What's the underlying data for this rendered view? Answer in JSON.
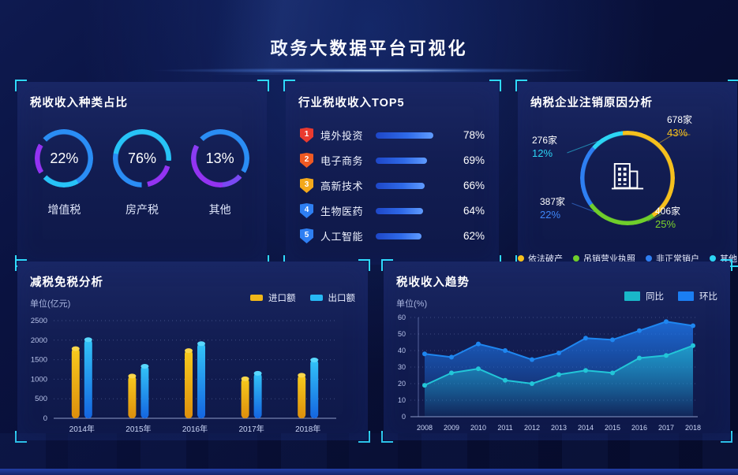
{
  "header": {
    "title": "政务大数据平台可视化"
  },
  "colors": {
    "background": "#070d30",
    "panel": "#121d4f",
    "corner_bracket": "#2fd9fd",
    "bar_blue": "#2f6ae8"
  },
  "panels": {
    "tax_type": {
      "title": "税收收入种类占比",
      "gauges": [
        {
          "value": "22%",
          "label": "增值税"
        },
        {
          "value": "76%",
          "label": "房产税"
        },
        {
          "value": "13%",
          "label": "其他"
        }
      ]
    },
    "industry_top5": {
      "title": "行业税收收入TOP5",
      "rows": [
        {
          "rank": "1",
          "label": "境外投资",
          "pct": "78%",
          "value": 78,
          "badge_color": "#e93a2f"
        },
        {
          "rank": "2",
          "label": "电子商务",
          "pct": "69%",
          "value": 69,
          "badge_color": "#ef5a23"
        },
        {
          "rank": "3",
          "label": "高新技术",
          "pct": "66%",
          "value": 66,
          "badge_color": "#f3a81b"
        },
        {
          "rank": "4",
          "label": "生物医药",
          "pct": "64%",
          "value": 64,
          "badge_color": "#2e7ff2"
        },
        {
          "rank": "5",
          "label": "人工智能",
          "pct": "62%",
          "value": 62,
          "badge_color": "#2e7ff2"
        }
      ]
    },
    "cancellation": {
      "title": "纳税企业注销原因分析",
      "callouts": [
        {
          "count": "678家",
          "pct": "43%",
          "color": "#f5c01d"
        },
        {
          "count": "276家",
          "pct": "12%",
          "color": "#2cd5f4"
        },
        {
          "count": "387家",
          "pct": "22%",
          "color": "#3f86f7"
        },
        {
          "count": "406家",
          "pct": "25%",
          "color": "#7ed32a"
        }
      ],
      "legend": [
        {
          "label": "依法破产",
          "color": "#f5c01d"
        },
        {
          "label": "吊销营业执照",
          "color": "#6fce2b"
        },
        {
          "label": "非正常销户",
          "color": "#2e7ff2"
        },
        {
          "label": "其他",
          "color": "#2cd5f4"
        }
      ]
    },
    "tax_relief": {
      "title": "减税免税分析",
      "unit": "单位(亿元)",
      "legend": [
        {
          "label": "进口额",
          "color": "#f0b619"
        },
        {
          "label": "出口额",
          "color": "#27b8f4"
        }
      ]
    },
    "revenue_trend": {
      "title": "税收收入趋势",
      "unit": "单位(%)",
      "legend": [
        {
          "label": "同比",
          "color": "#19b7c9"
        },
        {
          "label": "环比",
          "color": "#1b7ef2"
        }
      ]
    }
  },
  "chart_data": [
    {
      "type": "pie",
      "variant": "gauge-rings",
      "title": "税收收入种类占比",
      "labels": [
        "增值税",
        "房产税",
        "其他"
      ],
      "values": [
        22,
        76,
        13
      ],
      "unit": "%"
    },
    {
      "type": "bar",
      "variant": "horizontal-ranking",
      "title": "行业税收收入TOP5",
      "categories": [
        "境外投资",
        "电子商务",
        "高新技术",
        "生物医药",
        "人工智能"
      ],
      "values": [
        78,
        69,
        66,
        64,
        62
      ],
      "unit": "%"
    },
    {
      "type": "pie",
      "variant": "donut",
      "title": "纳税企业注销原因分析",
      "labels": [
        "依法破产",
        "吊销营业执照",
        "非正常销户",
        "其他"
      ],
      "values": [
        43,
        25,
        22,
        12
      ],
      "counts": [
        "678家",
        "406家",
        "387家",
        "276家"
      ],
      "colors": [
        "#f5c01d",
        "#6fce2b",
        "#2e7ff2",
        "#2cd5f4"
      ],
      "unit": "%"
    },
    {
      "type": "bar",
      "title": "减税免税分析",
      "ylabel": "单位(亿元)",
      "categories": [
        "2014年",
        "2015年",
        "2016年",
        "2017年",
        "2018年"
      ],
      "series": [
        {
          "name": "进口额",
          "values": [
            1850,
            1150,
            1800,
            1080,
            1170
          ]
        },
        {
          "name": "出口额",
          "values": [
            2080,
            1400,
            1980,
            1220,
            1560
          ]
        }
      ],
      "ylim": [
        0,
        2500
      ],
      "yticks": [
        0,
        500,
        1000,
        1500,
        2000,
        2500
      ],
      "grid": "dotted-horizontal",
      "legend_position": "top-right"
    },
    {
      "type": "area",
      "title": "税收收入趋势",
      "ylabel": "单位(%)",
      "x": [
        "2008",
        "2009",
        "2010",
        "2011",
        "2012",
        "2013",
        "2014",
        "2015",
        "2016",
        "2017",
        "2018"
      ],
      "series": [
        {
          "name": "同比",
          "values": [
            19,
            26.5,
            29,
            22,
            20,
            25.5,
            28,
            26.5,
            35.5,
            37,
            43
          ],
          "color": "#22c6d8"
        },
        {
          "name": "环比",
          "values": [
            38,
            36,
            44,
            40,
            34.5,
            38.5,
            47.5,
            46.5,
            52,
            57.5,
            55
          ],
          "color": "#1e86f0"
        }
      ],
      "ylim": [
        0,
        60
      ],
      "yticks": [
        0,
        10,
        20,
        30,
        40,
        50,
        60
      ],
      "grid": "dotted-horizontal",
      "legend_position": "top-right"
    }
  ]
}
